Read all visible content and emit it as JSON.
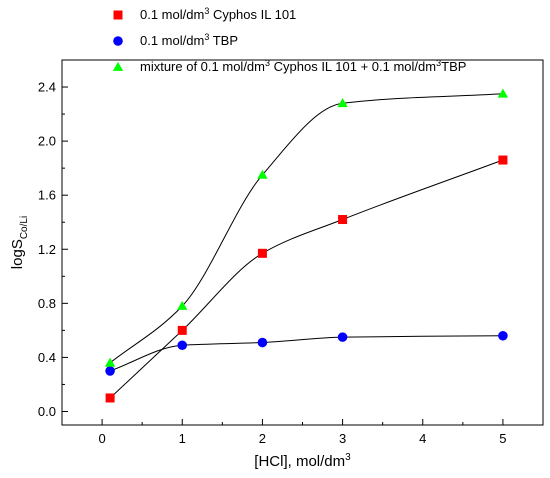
{
  "chart_data": {
    "type": "scatter",
    "xlabel": "[HCl], mol/dm",
    "xlabel_sup": "3",
    "ylabel": "logS",
    "ylabel_sub": "Co/Li",
    "xlim": [
      -0.5,
      5.5
    ],
    "ylim": [
      -0.1,
      2.6
    ],
    "x_ticks": [
      0,
      1,
      2,
      3,
      4,
      5
    ],
    "y_ticks": [
      0.0,
      0.4,
      0.8,
      1.2,
      1.6,
      2.0,
      2.4
    ],
    "x_tick_labels": [
      "0",
      "1",
      "2",
      "3",
      "4",
      "5"
    ],
    "y_tick_labels": [
      "0.0",
      "0.4",
      "0.8",
      "1.2",
      "1.6",
      "2.0",
      "2.4"
    ],
    "grid": false,
    "legend_position": "top",
    "series": [
      {
        "name": "0.1 mol/dm³ Cyphos IL 101",
        "marker": "square",
        "color": "#ff0000",
        "x": [
          0.1,
          1,
          2,
          3,
          5
        ],
        "y": [
          0.1,
          0.6,
          1.17,
          1.42,
          1.86
        ],
        "fit_curve": true
      },
      {
        "name": "0.1 mol/dm³ TBP",
        "marker": "circle",
        "color": "#0000ff",
        "x": [
          0.1,
          1,
          2,
          3,
          5
        ],
        "y": [
          0.3,
          0.49,
          0.51,
          0.55,
          0.56
        ],
        "fit_curve": true
      },
      {
        "name": "mixture of 0.1 mol/dm³ Cyphos IL 101 + 0.1 mol/dm³TBP",
        "marker": "triangle",
        "color": "#00ff00",
        "x": [
          0.1,
          1,
          2,
          3,
          5
        ],
        "y": [
          0.36,
          0.78,
          1.75,
          2.28,
          2.35
        ],
        "fit_curve": true
      }
    ],
    "legend": [
      {
        "parts": [
          "0.1 mol/dm",
          "3",
          " Cyphos IL 101"
        ]
      },
      {
        "parts": [
          "0.1 mol/dm",
          "3",
          " TBP"
        ]
      },
      {
        "parts": [
          "mixture of 0.1 mol/dm",
          "3",
          " Cyphos IL 101 + 0.1 mol/dm",
          "3",
          "TBP"
        ]
      }
    ]
  }
}
